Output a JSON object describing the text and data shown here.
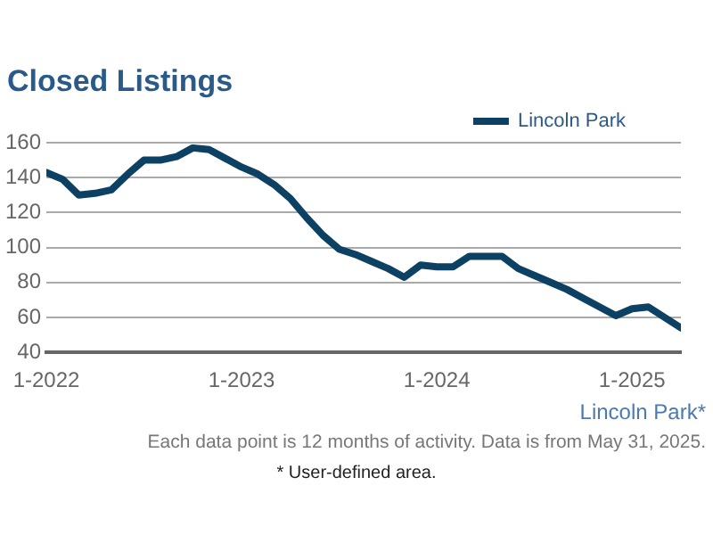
{
  "chart_data": {
    "type": "line",
    "title": "Closed Listings",
    "x": [
      "2022-01",
      "2022-02",
      "2022-03",
      "2022-04",
      "2022-05",
      "2022-06",
      "2022-07",
      "2022-08",
      "2022-09",
      "2022-10",
      "2022-11",
      "2022-12",
      "2023-01",
      "2023-02",
      "2023-03",
      "2023-04",
      "2023-05",
      "2023-06",
      "2023-07",
      "2023-08",
      "2023-09",
      "2023-10",
      "2023-11",
      "2023-12",
      "2024-01",
      "2024-02",
      "2024-03",
      "2024-04",
      "2024-05",
      "2024-06",
      "2024-07",
      "2024-08",
      "2024-09",
      "2024-10",
      "2024-11",
      "2024-12",
      "2025-01",
      "2025-02",
      "2025-03",
      "2025-04"
    ],
    "series": [
      {
        "name": "Lincoln Park",
        "color": "#0d4163",
        "values": [
          143,
          139,
          130,
          131,
          133,
          142,
          150,
          150,
          152,
          157,
          156,
          151,
          146,
          142,
          136,
          128,
          117,
          107,
          99,
          96,
          92,
          88,
          83,
          90,
          89,
          89,
          95,
          95,
          95,
          88,
          84,
          80,
          76,
          71,
          66,
          61,
          65,
          66,
          60,
          54
        ]
      }
    ],
    "xlim": [
      "2022-01",
      "2025-04"
    ],
    "xticks": [
      {
        "value": "2022-01",
        "label": "1-2022"
      },
      {
        "value": "2023-01",
        "label": "1-2023"
      },
      {
        "value": "2024-01",
        "label": "1-2024"
      },
      {
        "value": "2025-01",
        "label": "1-2025"
      }
    ],
    "ylim": [
      40,
      160
    ],
    "yticks": [
      40,
      60,
      80,
      100,
      120,
      140,
      160
    ],
    "grid": "y",
    "legend": "top right",
    "marker": "none",
    "line_style": "solid",
    "annotations": [
      "Lincoln Park*",
      "Each data point is 12 months of activity. Data is from May 31, 2025.",
      "* User-defined area."
    ]
  }
}
